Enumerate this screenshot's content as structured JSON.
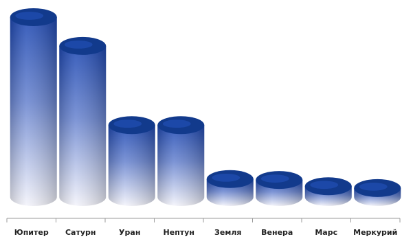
{
  "chart_data": {
    "type": "bar",
    "style": "3d-cylinder",
    "categories": [
      "Юпитер",
      "Сатурн",
      "Уран",
      "Нептун",
      "Земля",
      "Венера",
      "Марс",
      "Меркурий"
    ],
    "values": [
      100,
      84,
      40,
      40,
      10,
      9.5,
      6,
      5
    ],
    "ylim": [
      0,
      100
    ],
    "grid": false,
    "legend": "none",
    "colors": {
      "cap": "#123a8c",
      "body_top": "#1e48b2",
      "body_bottom": "#f4f4fb",
      "axis": "#9a9a9a"
    }
  }
}
